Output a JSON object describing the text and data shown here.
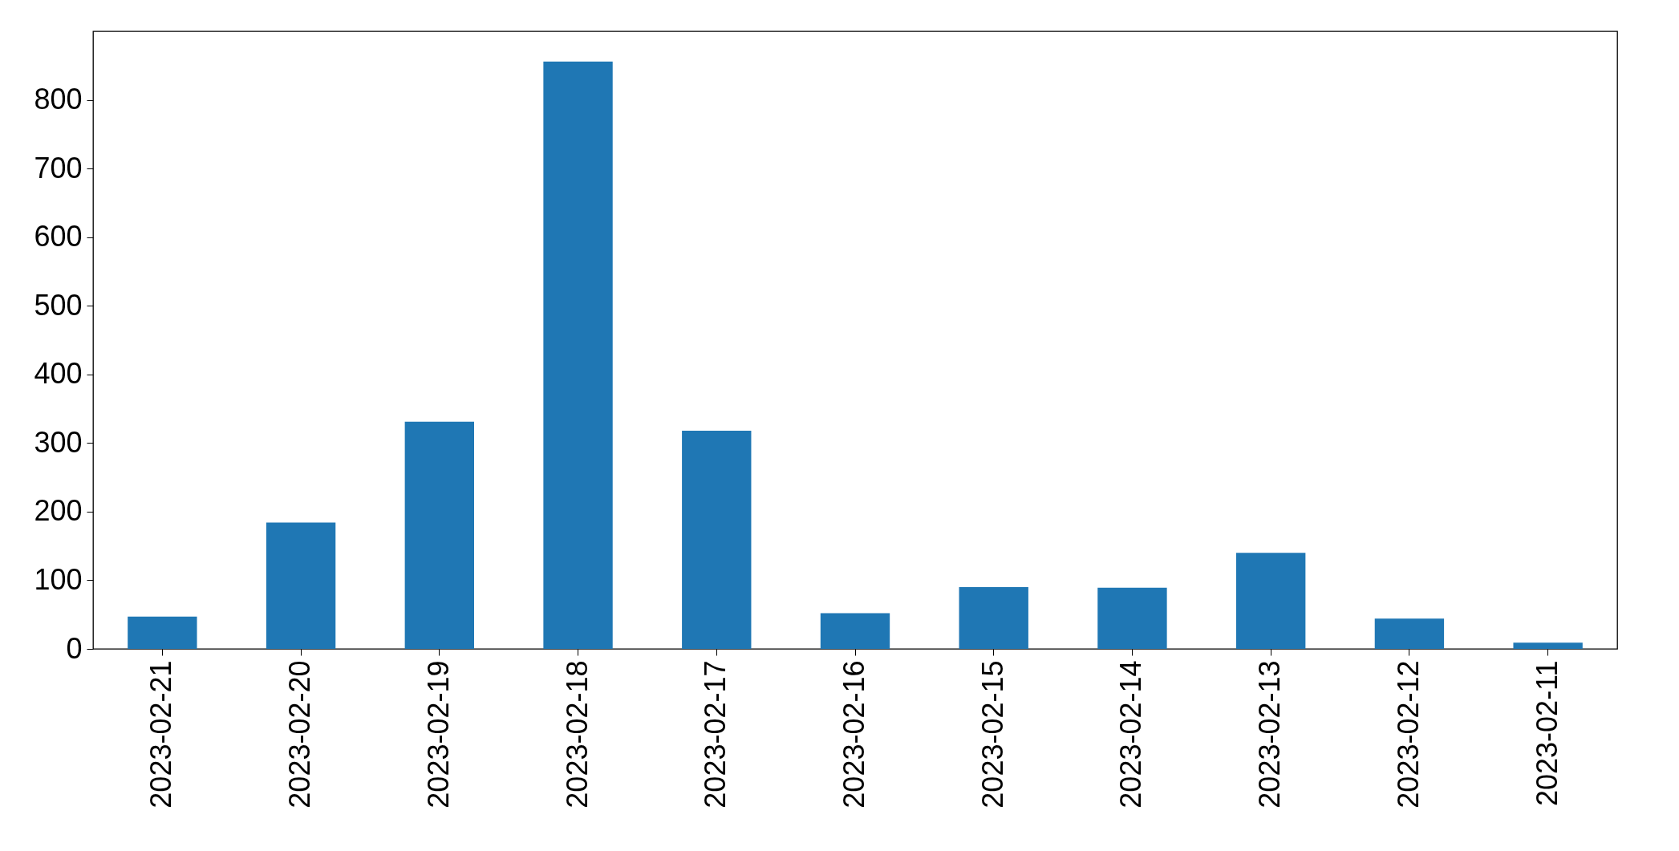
{
  "chart_data": {
    "type": "bar",
    "categories": [
      "2023-02-21",
      "2023-02-20",
      "2023-02-19",
      "2023-02-18",
      "2023-02-17",
      "2023-02-16",
      "2023-02-15",
      "2023-02-14",
      "2023-02-13",
      "2023-02-12",
      "2023-02-11"
    ],
    "values": [
      47,
      184,
      331,
      856,
      318,
      52,
      90,
      89,
      140,
      44,
      9
    ],
    "color": "#1f77b4",
    "ylim": [
      0,
      900
    ],
    "yticks": [
      0,
      100,
      200,
      300,
      400,
      500,
      600,
      700,
      800
    ],
    "grid": false
  }
}
